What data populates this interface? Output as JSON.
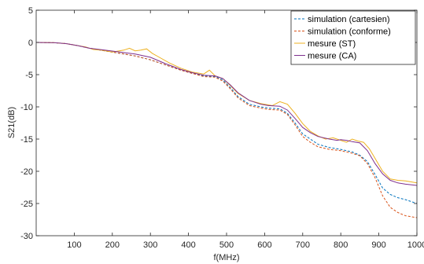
{
  "chart_data": {
    "type": "line",
    "xlabel": "f(MHz)",
    "ylabel": "S21(dB)",
    "xlim": [
      0,
      1000
    ],
    "ylim": [
      -30,
      5
    ],
    "xticks": [
      100,
      200,
      300,
      400,
      500,
      600,
      700,
      800,
      900,
      1000
    ],
    "yticks": [
      5,
      0,
      -5,
      -10,
      -15,
      -20,
      -25,
      -30
    ],
    "grid": false,
    "legend_position": "top-right",
    "series": [
      {
        "name": "simulation (cartesien)",
        "color": "#0072BD",
        "dash": "dashed",
        "x": [
          0,
          50,
          80,
          110,
          140,
          180,
          220,
          260,
          300,
          340,
          380,
          410,
          440,
          470,
          490,
          510,
          530,
          560,
          590,
          610,
          640,
          660,
          680,
          700,
          720,
          740,
          770,
          800,
          830,
          850,
          870,
          890,
          910,
          930,
          950,
          970,
          1000
        ],
        "values": [
          0,
          -0.05,
          -0.2,
          -0.5,
          -0.9,
          -1.3,
          -1.7,
          -2.1,
          -2.7,
          -3.5,
          -4.3,
          -4.8,
          -5.2,
          -5.3,
          -5.8,
          -7.0,
          -8.4,
          -9.6,
          -10.0,
          -10.2,
          -10.3,
          -11.0,
          -12.5,
          -14.2,
          -15.0,
          -15.8,
          -16.3,
          -16.6,
          -17.0,
          -17.5,
          -18.5,
          -20.5,
          -22.6,
          -23.6,
          -24.1,
          -24.4,
          -25.0
        ]
      },
      {
        "name": "simulation (conforme)",
        "color": "#D95319",
        "dash": "dashed",
        "x": [
          0,
          50,
          80,
          110,
          140,
          180,
          220,
          260,
          300,
          340,
          380,
          410,
          440,
          470,
          490,
          510,
          530,
          560,
          590,
          610,
          640,
          660,
          680,
          700,
          720,
          740,
          770,
          800,
          830,
          850,
          870,
          890,
          910,
          930,
          950,
          970,
          1000
        ],
        "values": [
          0,
          -0.05,
          -0.2,
          -0.5,
          -0.9,
          -1.3,
          -1.7,
          -2.1,
          -2.7,
          -3.5,
          -4.3,
          -4.8,
          -5.3,
          -5.4,
          -6.0,
          -7.2,
          -8.6,
          -9.8,
          -10.2,
          -10.4,
          -10.5,
          -11.2,
          -12.8,
          -14.6,
          -15.5,
          -16.2,
          -16.6,
          -16.8,
          -17.2,
          -17.6,
          -18.8,
          -21.0,
          -23.8,
          -25.6,
          -26.4,
          -26.9,
          -27.2
        ]
      },
      {
        "name": "mesure (ST)",
        "color": "#EDB120",
        "dash": "solid",
        "x": [
          0,
          50,
          80,
          110,
          130,
          150,
          170,
          200,
          230,
          245,
          260,
          275,
          290,
          305,
          320,
          350,
          380,
          410,
          440,
          455,
          470,
          490,
          510,
          530,
          560,
          590,
          620,
          640,
          660,
          680,
          700,
          720,
          740,
          760,
          780,
          800,
          815,
          830,
          845,
          860,
          875,
          890,
          910,
          930,
          950,
          970,
          1000
        ],
        "values": [
          0,
          -0.05,
          -0.2,
          -0.5,
          -0.7,
          -1.1,
          -1.2,
          -1.5,
          -1.2,
          -0.9,
          -1.3,
          -1.2,
          -1.0,
          -1.7,
          -2.2,
          -3.2,
          -4.0,
          -4.6,
          -4.9,
          -4.3,
          -5.2,
          -5.6,
          -6.7,
          -7.9,
          -9.0,
          -9.5,
          -9.8,
          -9.2,
          -9.6,
          -11.0,
          -12.6,
          -13.8,
          -14.5,
          -15.0,
          -14.8,
          -15.2,
          -15.5,
          -15.0,
          -15.3,
          -15.5,
          -16.5,
          -18.0,
          -20.0,
          -21.2,
          -21.4,
          -21.5,
          -21.8
        ]
      },
      {
        "name": "mesure (CA)",
        "color": "#7E2F8E",
        "dash": "solid",
        "x": [
          0,
          50,
          80,
          110,
          140,
          180,
          220,
          260,
          300,
          340,
          380,
          410,
          440,
          470,
          490,
          510,
          530,
          560,
          590,
          610,
          640,
          660,
          680,
          700,
          720,
          740,
          770,
          790,
          800,
          815,
          830,
          850,
          870,
          890,
          910,
          930,
          950,
          970,
          1000
        ],
        "values": [
          0,
          -0.05,
          -0.2,
          -0.5,
          -0.9,
          -1.2,
          -1.5,
          -1.8,
          -2.3,
          -3.3,
          -4.2,
          -4.7,
          -5.1,
          -5.2,
          -5.6,
          -6.6,
          -7.8,
          -9.0,
          -9.6,
          -9.8,
          -9.9,
          -10.5,
          -11.8,
          -13.2,
          -14.0,
          -14.6,
          -15.0,
          -15.2,
          -15.1,
          -15.2,
          -15.4,
          -15.6,
          -16.8,
          -18.8,
          -20.4,
          -21.4,
          -21.8,
          -22.0,
          -22.2
        ]
      }
    ]
  }
}
